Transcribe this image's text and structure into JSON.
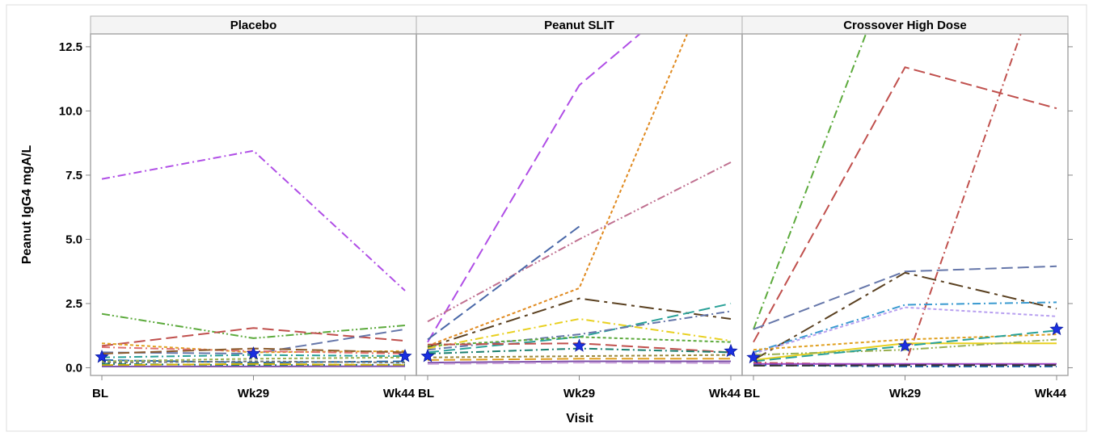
{
  "chart_data": {
    "type": "line",
    "panels": [
      {
        "title": "Placebo",
        "series": [
          {
            "values": [
              7.35,
              8.45,
              3.0
            ],
            "color": "#b04ee6",
            "dash": "10 4 2 4"
          },
          {
            "values": [
              2.1,
              1.15,
              1.65
            ],
            "color": "#5caa3c",
            "dash": "10 3 2 3 2 3"
          },
          {
            "values": [
              0.85,
              1.55,
              1.05
            ],
            "color": "#c0504d",
            "dash": "14 6"
          },
          {
            "values": [
              0.6,
              0.55,
              1.5
            ],
            "color": "#6677aa",
            "dash": "14 6"
          },
          {
            "values": [
              0.95,
              0.6,
              0.65
            ],
            "color": "#e0a020",
            "dash": "4 3"
          },
          {
            "values": [
              0.8,
              0.65,
              0.55
            ],
            "color": "#e07070",
            "dash": "10 4 2 4"
          },
          {
            "values": [
              0.55,
              0.75,
              0.6
            ],
            "color": "#8a5a2b",
            "dash": "14 6"
          },
          {
            "values": [
              0.4,
              0.5,
              0.45
            ],
            "color": "#2aa198",
            "dash": "10 4 2 4"
          },
          {
            "values": [
              0.3,
              0.2,
              0.25
            ],
            "color": "#2266aa",
            "dash": "14 6"
          },
          {
            "values": [
              0.2,
              0.25,
              0.2
            ],
            "color": "#777777",
            "dash": "4 3"
          },
          {
            "values": [
              0.15,
              0.1,
              0.12
            ],
            "color": "#1b7f6e",
            "dash": "10 4 2 4"
          },
          {
            "values": [
              0.1,
              0.15,
              0.1
            ],
            "color": "#d4b800",
            "dash": "14 6"
          },
          {
            "values": [
              0.05,
              0.05,
              0.06
            ],
            "color": "#7b4ea8",
            "dash": ""
          },
          {
            "values": [
              0.25,
              0.35,
              0.4
            ],
            "color": "#9ab050",
            "dash": "4 3"
          }
        ],
        "mean": [
          0.42,
          0.55,
          0.45
        ]
      },
      {
        "title": "Peanut SLIT",
        "series": [
          {
            "values": [
              1.0,
              11.0,
              16.0
            ],
            "color": "#b04ee6",
            "dash": "14 6"
          },
          {
            "values": [
              0.85,
              3.1,
              17.0
            ],
            "color": "#e08a20",
            "dash": "4 3"
          },
          {
            "values": [
              1.8,
              5.0,
              8.0
            ],
            "color": "#c07090",
            "dash": "10 3 2 3 2 3"
          },
          {
            "values": [
              1.1,
              5.5,
              null
            ],
            "color": "#4a68a8",
            "dash": "14 6"
          },
          {
            "values": [
              0.8,
              2.7,
              1.9
            ],
            "color": "#5a4020",
            "dash": "18 6 4 6"
          },
          {
            "values": [
              0.75,
              1.9,
              1.05
            ],
            "color": "#e8d020",
            "dash": "10 4 2 4"
          },
          {
            "values": [
              0.6,
              1.2,
              2.5
            ],
            "color": "#2aa198",
            "dash": "14 6"
          },
          {
            "values": [
              0.7,
              1.3,
              2.2
            ],
            "color": "#6677aa",
            "dash": "10 4 2 4"
          },
          {
            "values": [
              0.85,
              1.2,
              1.0
            ],
            "color": "#5caa3c",
            "dash": "4 3"
          },
          {
            "values": [
              0.9,
              0.95,
              0.6
            ],
            "color": "#c0504d",
            "dash": "14 6"
          },
          {
            "values": [
              0.55,
              0.75,
              0.6
            ],
            "color": "#1b7f6e",
            "dash": "10 4 2 4"
          },
          {
            "values": [
              0.4,
              0.45,
              0.5
            ],
            "color": "#9a8a40",
            "dash": "4 3"
          },
          {
            "values": [
              0.3,
              0.35,
              0.35
            ],
            "color": "#e0a020",
            "dash": "14 6"
          },
          {
            "values": [
              0.2,
              0.25,
              0.25
            ],
            "color": "#7b4ea8",
            "dash": ""
          },
          {
            "values": [
              0.15,
              0.2,
              0.18
            ],
            "color": "#c8a0d8",
            "dash": "14 6"
          }
        ],
        "mean": [
          0.45,
          0.85,
          0.65
        ]
      },
      {
        "title": "Crossover High Dose",
        "series": [
          {
            "values": [
              1.5,
              17.0,
              null
            ],
            "color": "#5caa3c",
            "dash": "10 4 2 4"
          },
          {
            "values": [
              1.0,
              11.7,
              10.1
            ],
            "color": "#c0504d",
            "dash": "14 6"
          },
          {
            "values": [
              0.2,
              0.1,
              17.0
            ],
            "color": "#c0504d",
            "dash": "10 4 2 4"
          },
          {
            "values": [
              1.5,
              3.75,
              3.95
            ],
            "color": "#6677aa",
            "dash": "14 6"
          },
          {
            "values": [
              0.3,
              3.7,
              2.3
            ],
            "color": "#5a4020",
            "dash": "18 6 4 6"
          },
          {
            "values": [
              0.6,
              2.45,
              2.55
            ],
            "color": "#3a9ad0",
            "dash": "10 4 2 4"
          },
          {
            "values": [
              0.55,
              2.35,
              2.0
            ],
            "color": "#b8a0f0",
            "dash": "4 3"
          },
          {
            "values": [
              0.7,
              1.1,
              1.3
            ],
            "color": "#e0a020",
            "dash": "4 3"
          },
          {
            "values": [
              0.3,
              0.95,
              0.95
            ],
            "color": "#e8d020",
            "dash": ""
          },
          {
            "values": [
              0.5,
              0.7,
              1.1
            ],
            "color": "#9ab050",
            "dash": "10 3 2 3 2 3"
          },
          {
            "values": [
              0.25,
              0.85,
              1.45
            ],
            "color": "#2aa198",
            "dash": "14 6"
          },
          {
            "values": [
              0.15,
              0.15,
              0.15
            ],
            "color": "#9b3fc0",
            "dash": ""
          },
          {
            "values": [
              0.1,
              0.05,
              0.05
            ],
            "color": "#1b5fa0",
            "dash": "10 4 2 4"
          },
          {
            "values": [
              0.08,
              0.1,
              0.1
            ],
            "color": "#333333",
            "dash": "14 6"
          }
        ],
        "mean": [
          0.4,
          0.85,
          1.5
        ]
      }
    ],
    "x_categories": [
      "BL",
      "Wk29",
      "Wk44"
    ],
    "xlabel": "Visit",
    "ylabel": "Peanut IgG4 mgA/L",
    "yticks": [
      0.0,
      2.5,
      5.0,
      7.5,
      10.0,
      12.5
    ],
    "ytick_labels": [
      "0.0",
      "2.5",
      "5.0",
      "7.5",
      "10.0",
      "12.5"
    ],
    "ylim": [
      -0.3,
      13.0
    ],
    "mean_marker": "star",
    "mean_color": "#1a2fe0",
    "grid": false
  }
}
